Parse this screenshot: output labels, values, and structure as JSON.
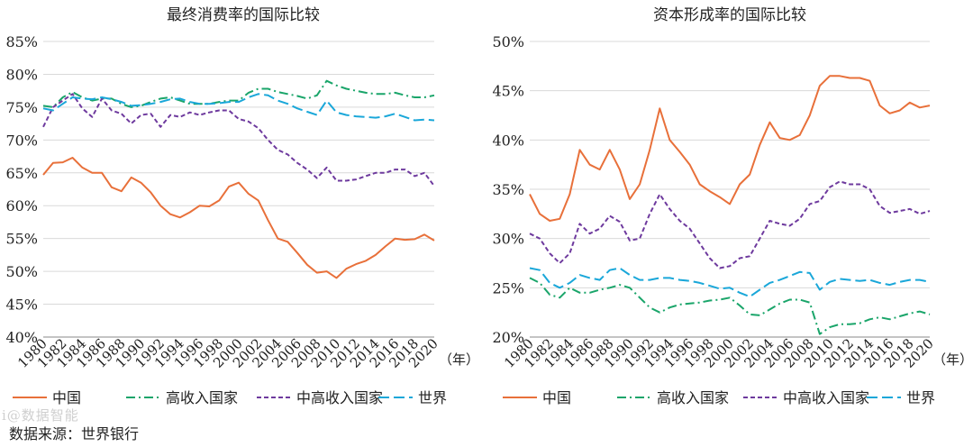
{
  "source_note": "数据来源：世界银行",
  "watermark": "i@数据智能",
  "year_unit": "（年）",
  "chart_data": [
    {
      "type": "line",
      "title": "最终消费率的国际比较",
      "ylim": [
        40,
        85
      ],
      "yticks": [
        40,
        45,
        50,
        55,
        60,
        65,
        70,
        75,
        80,
        85
      ],
      "ytick_labels": [
        "40%",
        "45%",
        "50%",
        "55%",
        "60%",
        "65%",
        "70%",
        "75%",
        "80%",
        "85%"
      ],
      "xlim": [
        1980,
        2020
      ],
      "xtick_labels": [
        "1980",
        "1982",
        "1984",
        "1986",
        "1988",
        "1990",
        "1992",
        "1994",
        "1996",
        "1998",
        "2000",
        "2002",
        "2004",
        "2006",
        "2008",
        "2010",
        "2012",
        "2014",
        "2016",
        "2018",
        "2020"
      ],
      "x": [
        1980,
        1981,
        1982,
        1983,
        1984,
        1985,
        1986,
        1987,
        1988,
        1989,
        1990,
        1991,
        1992,
        1993,
        1994,
        1995,
        1996,
        1997,
        1998,
        1999,
        2000,
        2001,
        2002,
        2003,
        2004,
        2005,
        2006,
        2007,
        2008,
        2009,
        2010,
        2011,
        2012,
        2013,
        2014,
        2015,
        2016,
        2017,
        2018,
        2019,
        2020
      ],
      "series": [
        {
          "name": "中国",
          "color": "#E8703A",
          "dash": "solid",
          "values": [
            64.7,
            66.5,
            66.6,
            67.3,
            65.8,
            65.0,
            65.0,
            62.8,
            62.2,
            64.3,
            63.5,
            62.0,
            60.0,
            58.7,
            58.2,
            59.0,
            60.0,
            59.9,
            60.8,
            62.9,
            63.5,
            61.8,
            60.8,
            57.8,
            55.0,
            54.5,
            52.8,
            51.0,
            49.8,
            50.0,
            49.0,
            50.4,
            51.1,
            51.6,
            52.5,
            53.8,
            55.0,
            54.8,
            54.9,
            55.6,
            54.7
          ]
        },
        {
          "name": "高收入国家",
          "color": "#1AA56A",
          "dash": "dashdot",
          "values": [
            75.2,
            75.0,
            76.5,
            77.3,
            76.5,
            76.0,
            76.3,
            76.3,
            75.5,
            75.0,
            75.2,
            75.8,
            76.3,
            76.5,
            76.0,
            75.5,
            75.5,
            75.5,
            75.8,
            76.0,
            76.0,
            77.2,
            77.8,
            77.8,
            77.3,
            77.0,
            76.7,
            76.3,
            76.8,
            79.0,
            78.3,
            77.8,
            77.5,
            77.2,
            77.0,
            77.0,
            77.2,
            76.8,
            76.5,
            76.5,
            76.8
          ]
        },
        {
          "name": "中高收入国家",
          "color": "#6E3A9E",
          "dash": "dash",
          "values": [
            72.0,
            75.0,
            76.0,
            77.0,
            74.8,
            73.5,
            76.3,
            74.5,
            74.0,
            72.5,
            73.8,
            74.0,
            72.0,
            73.8,
            73.5,
            74.2,
            73.8,
            74.2,
            74.5,
            74.5,
            73.2,
            72.8,
            71.8,
            70.0,
            68.5,
            67.8,
            66.5,
            65.5,
            64.2,
            65.8,
            63.8,
            63.8,
            64.0,
            64.5,
            65.0,
            65.0,
            65.5,
            65.5,
            64.5,
            65.0,
            63.0
          ]
        },
        {
          "name": "世界",
          "color": "#1AA7D9",
          "dash": "longdash",
          "values": [
            74.8,
            74.5,
            75.5,
            76.5,
            76.3,
            76.2,
            76.5,
            76.2,
            75.8,
            75.2,
            75.3,
            75.5,
            75.8,
            76.2,
            76.3,
            75.8,
            75.5,
            75.5,
            75.6,
            75.8,
            75.8,
            76.5,
            77.0,
            76.8,
            76.0,
            75.5,
            74.8,
            74.3,
            73.8,
            76.0,
            74.2,
            73.8,
            73.6,
            73.5,
            73.4,
            73.6,
            74.0,
            73.5,
            73.0,
            73.1,
            73.0
          ]
        }
      ]
    },
    {
      "type": "line",
      "title": "资本形成率的国际比较",
      "ylim": [
        20,
        50
      ],
      "yticks": [
        20,
        25,
        30,
        35,
        40,
        45,
        50
      ],
      "ytick_labels": [
        "20%",
        "25%",
        "30%",
        "35%",
        "40%",
        "45%",
        "50%"
      ],
      "xlim": [
        1980,
        2020
      ],
      "xtick_labels": [
        "1980",
        "1982",
        "1984",
        "1986",
        "1988",
        "1990",
        "1992",
        "1994",
        "1996",
        "1998",
        "2000",
        "2002",
        "2004",
        "2006",
        "2008",
        "2010",
        "2012",
        "2014",
        "2016",
        "2018",
        "2020"
      ],
      "x": [
        1980,
        1981,
        1982,
        1983,
        1984,
        1985,
        1986,
        1987,
        1988,
        1989,
        1990,
        1991,
        1992,
        1993,
        1994,
        1995,
        1996,
        1997,
        1998,
        1999,
        2000,
        2001,
        2002,
        2003,
        2004,
        2005,
        2006,
        2007,
        2008,
        2009,
        2010,
        2011,
        2012,
        2013,
        2014,
        2015,
        2016,
        2017,
        2018,
        2019,
        2020
      ],
      "series": [
        {
          "name": "中国",
          "color": "#E8703A",
          "dash": "solid",
          "values": [
            34.5,
            32.5,
            31.8,
            32.0,
            34.5,
            39.0,
            37.5,
            37.0,
            39.0,
            37.0,
            34.0,
            35.5,
            39.0,
            43.2,
            40.0,
            38.8,
            37.5,
            35.5,
            34.8,
            34.2,
            33.5,
            35.5,
            36.5,
            39.5,
            41.8,
            40.2,
            40.0,
            40.5,
            42.5,
            45.5,
            46.5,
            46.5,
            46.3,
            46.3,
            46.0,
            43.5,
            42.7,
            43.0,
            43.8,
            43.3,
            43.5
          ]
        },
        {
          "name": "高收入国家",
          "color": "#1AA56A",
          "dash": "dashdot",
          "values": [
            26.0,
            25.5,
            24.3,
            24.0,
            25.0,
            24.5,
            24.5,
            24.8,
            25.0,
            25.3,
            25.0,
            24.0,
            23.0,
            22.5,
            23.0,
            23.3,
            23.4,
            23.5,
            23.7,
            23.8,
            24.0,
            23.2,
            22.3,
            22.2,
            22.8,
            23.4,
            23.8,
            23.8,
            23.5,
            20.3,
            21.0,
            21.3,
            21.3,
            21.4,
            21.8,
            22.0,
            21.8,
            22.1,
            22.4,
            22.6,
            22.3
          ]
        },
        {
          "name": "中高收入国家",
          "color": "#6E3A9E",
          "dash": "dash",
          "values": [
            30.5,
            30.0,
            28.5,
            27.5,
            28.5,
            31.5,
            30.5,
            31.0,
            32.3,
            31.7,
            29.8,
            30.0,
            32.5,
            34.5,
            33.0,
            31.8,
            31.0,
            29.5,
            28.0,
            27.0,
            27.2,
            28.0,
            28.2,
            30.0,
            31.8,
            31.5,
            31.3,
            32.0,
            33.5,
            33.8,
            35.2,
            35.8,
            35.5,
            35.5,
            35.0,
            33.3,
            32.6,
            32.8,
            33.0,
            32.5,
            32.8
          ]
        },
        {
          "name": "世界",
          "color": "#1AA7D9",
          "dash": "longdash",
          "values": [
            27.0,
            26.8,
            25.5,
            25.0,
            25.5,
            26.3,
            26.0,
            25.8,
            26.8,
            27.0,
            26.3,
            25.8,
            25.8,
            26.0,
            26.0,
            25.8,
            25.7,
            25.5,
            25.2,
            24.9,
            25.0,
            24.5,
            24.1,
            24.8,
            25.5,
            25.8,
            26.2,
            26.6,
            26.5,
            24.8,
            25.6,
            25.9,
            25.8,
            25.7,
            25.8,
            25.5,
            25.3,
            25.6,
            25.8,
            25.8,
            25.6
          ]
        }
      ]
    }
  ]
}
